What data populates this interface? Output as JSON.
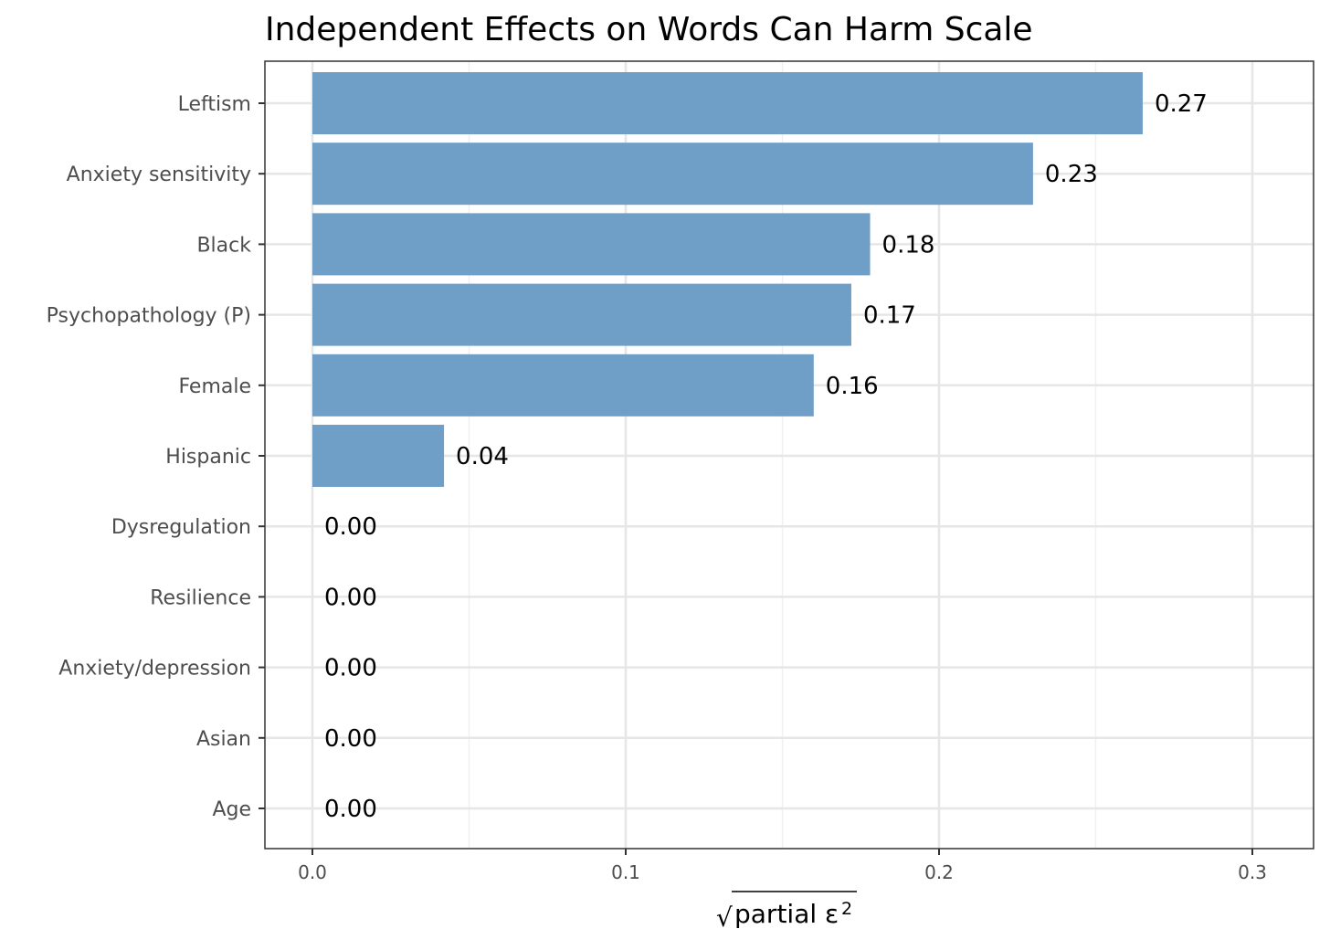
{
  "colors": {
    "bar": "#6f9ec7",
    "grid_major": "#e6e6e6",
    "grid_minor": "#f0f0f0",
    "panel_border": "#333333",
    "tick_text": "#4d4d4d"
  },
  "chart_data": {
    "type": "bar",
    "orientation": "horizontal",
    "title": "Independent Effects on Words Can Harm Scale",
    "xlabel": "partial ε",
    "xlabel_exponent": "2",
    "xlabel_radical": "√",
    "ylabel": "",
    "xlim": [
      -0.015,
      0.32
    ],
    "x_ticks": [
      0.0,
      0.1,
      0.2,
      0.3
    ],
    "x_tick_labels": [
      "0.0",
      "0.1",
      "0.2",
      "0.3"
    ],
    "grid": true,
    "categories": [
      "Leftism",
      "Anxiety sensitivity",
      "Black",
      "Psychopathology (P)",
      "Female",
      "Hispanic",
      "Dysregulation",
      "Resilience",
      "Anxiety/depression",
      "Asian",
      "Age"
    ],
    "values": [
      0.265,
      0.23,
      0.178,
      0.172,
      0.16,
      0.042,
      0.0,
      0.0,
      0.0,
      0.0,
      0.0
    ],
    "value_labels": [
      "0.27",
      "0.23",
      "0.18",
      "0.17",
      "0.16",
      "0.04",
      "0.00",
      "0.00",
      "0.00",
      "0.00",
      "0.00"
    ]
  }
}
